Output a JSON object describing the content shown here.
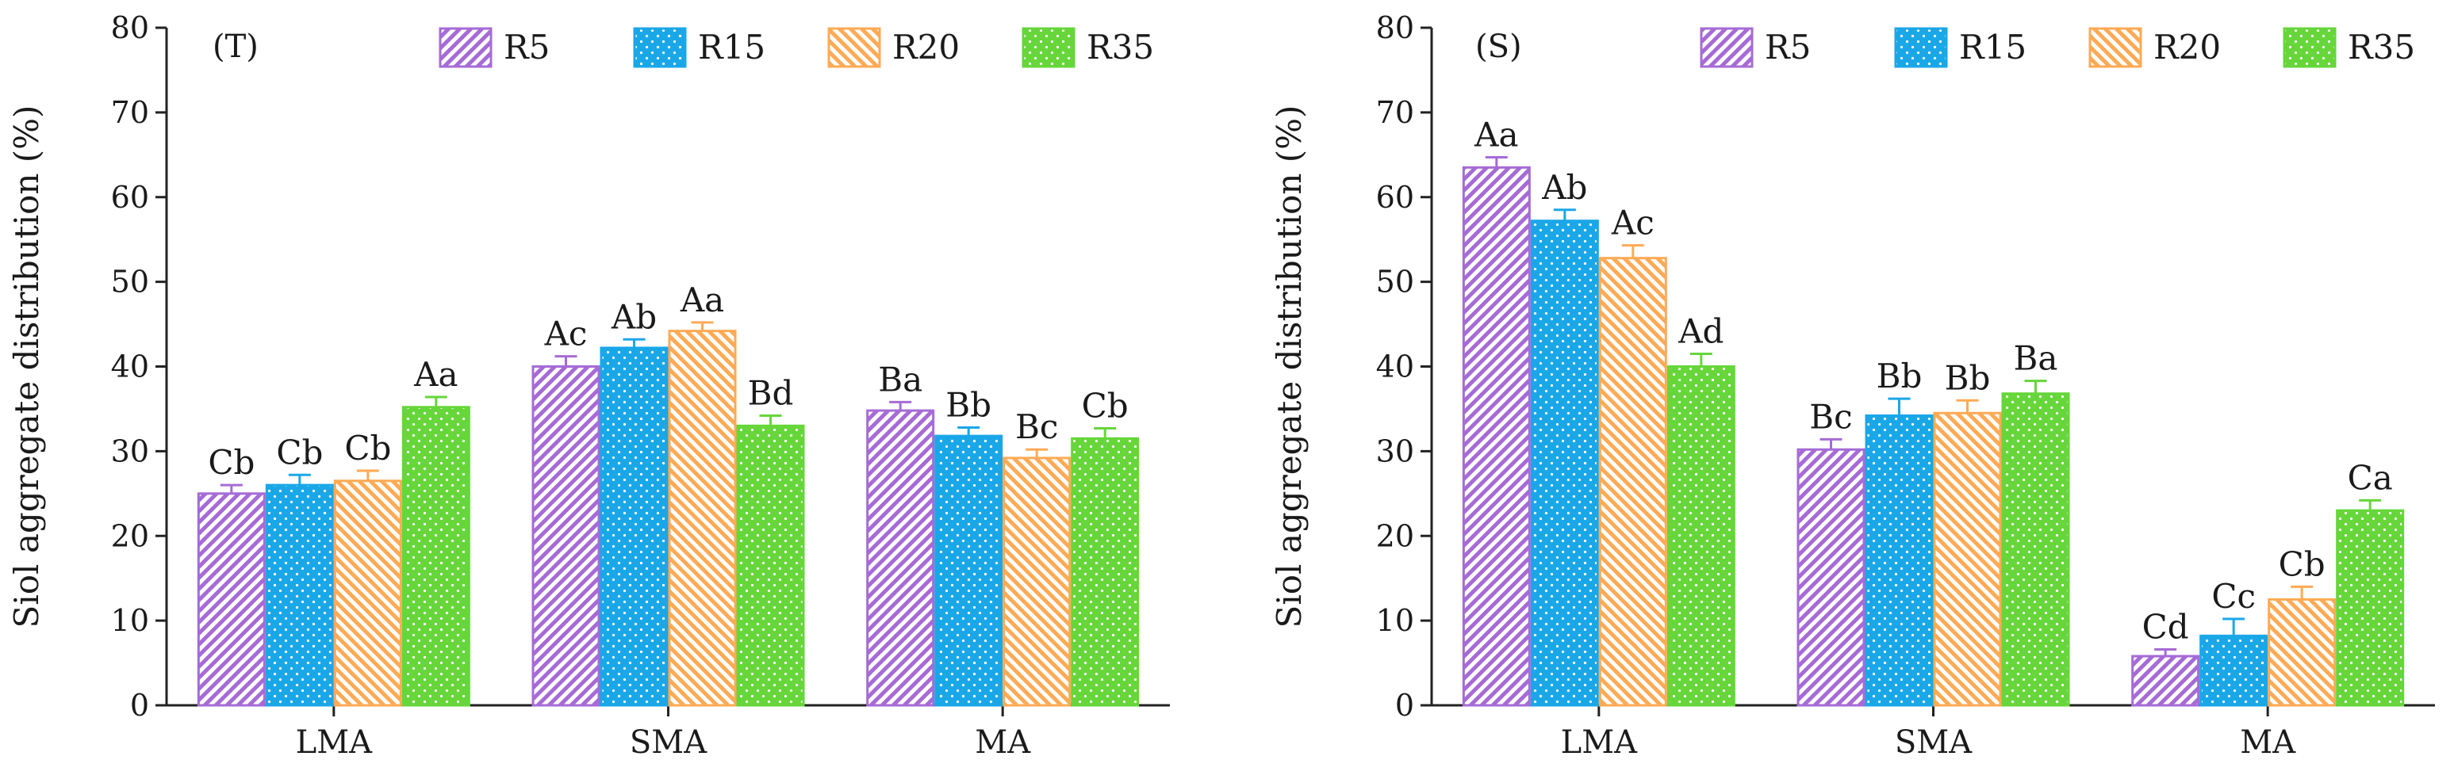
{
  "colors": {
    "R5": "#a66bd6",
    "R15": "#1aa7e8",
    "R20": "#ffaa55",
    "R35": "#66d63a"
  },
  "chart_data": [
    {
      "type": "bar",
      "panel_label": "(T)",
      "ylabel": "Siol aggregate distribution (%)",
      "ylim": [
        0,
        80
      ],
      "yticks": [
        "0",
        "10",
        "20",
        "30",
        "40",
        "50",
        "60",
        "70",
        "80"
      ],
      "categories": [
        "LMA",
        "SMA",
        "MA"
      ],
      "legend": [
        "R5",
        "R15",
        "R20",
        "R35"
      ],
      "legend_position": "top",
      "series": [
        {
          "name": "R5",
          "values": [
            25.0,
            40.0,
            34.8
          ],
          "errors": [
            1.0,
            1.2,
            1.0
          ],
          "labels": [
            "Cb",
            "Ac",
            "Ba"
          ]
        },
        {
          "name": "R15",
          "values": [
            26.0,
            42.2,
            31.8
          ],
          "errors": [
            1.2,
            1.0,
            1.0
          ],
          "labels": [
            "Cb",
            "Ab",
            "Bb"
          ]
        },
        {
          "name": "R20",
          "values": [
            26.5,
            44.2,
            29.2
          ],
          "errors": [
            1.2,
            1.0,
            1.0
          ],
          "labels": [
            "Cb",
            "Aa",
            "Bc"
          ]
        },
        {
          "name": "R35",
          "values": [
            35.2,
            33.0,
            31.5
          ],
          "errors": [
            1.2,
            1.2,
            1.2
          ],
          "labels": [
            "Aa",
            "Bd",
            "Cb"
          ]
        }
      ]
    },
    {
      "type": "bar",
      "panel_label": "(S)",
      "ylabel": "Siol aggregate distribution (%)",
      "ylim": [
        0,
        80
      ],
      "yticks": [
        "0",
        "10",
        "20",
        "30",
        "40",
        "50",
        "60",
        "70",
        "80"
      ],
      "categories": [
        "LMA",
        "SMA",
        "MA"
      ],
      "legend": [
        "R5",
        "R15",
        "R20",
        "R35"
      ],
      "legend_position": "top",
      "series": [
        {
          "name": "R5",
          "values": [
            63.5,
            30.2,
            5.8
          ],
          "errors": [
            1.2,
            1.2,
            0.8
          ],
          "labels": [
            "Aa",
            "Bc",
            "Cd"
          ]
        },
        {
          "name": "R15",
          "values": [
            57.2,
            34.2,
            8.2
          ],
          "errors": [
            1.3,
            2.0,
            2.0
          ],
          "labels": [
            "Ab",
            "Bb",
            "Cc"
          ]
        },
        {
          "name": "R20",
          "values": [
            52.8,
            34.5,
            12.5
          ],
          "errors": [
            1.5,
            1.5,
            1.5
          ],
          "labels": [
            "Ac",
            "Bb",
            "Cb"
          ]
        },
        {
          "name": "R35",
          "values": [
            40.0,
            36.8,
            23.0
          ],
          "errors": [
            1.5,
            1.5,
            1.2
          ],
          "labels": [
            "Ad",
            "Ba",
            "Ca"
          ]
        }
      ]
    }
  ]
}
